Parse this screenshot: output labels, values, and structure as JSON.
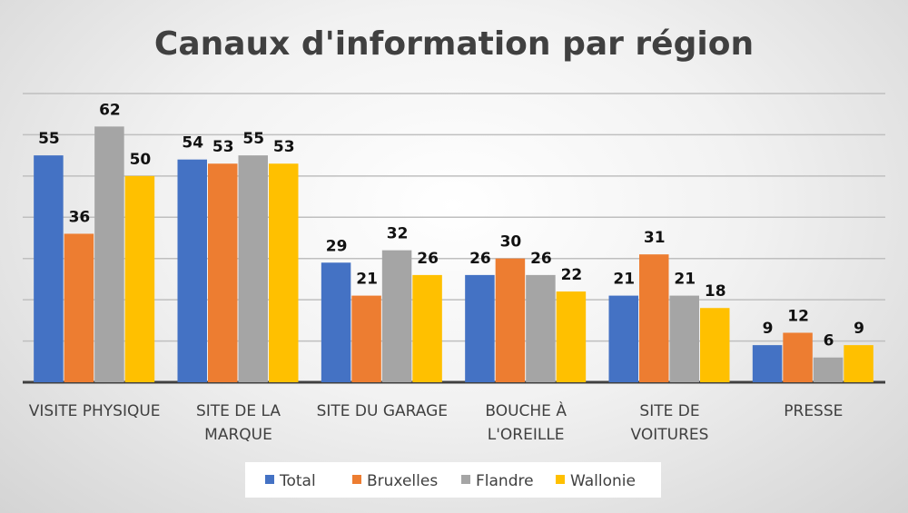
{
  "chart_data": {
    "type": "bar",
    "title": "Canaux d'information par région",
    "categories": [
      [
        "VISITE PHYSIQUE"
      ],
      [
        "SITE DE LA",
        "MARQUE"
      ],
      [
        "SITE DU GARAGE"
      ],
      [
        "BOUCHE À",
        "L'OREILLE"
      ],
      [
        "SITE DE",
        "VOITURES"
      ],
      [
        "PRESSE"
      ]
    ],
    "series": [
      {
        "name": "Total",
        "color": "#4472C4",
        "values": [
          55,
          54,
          29,
          26,
          21,
          9
        ]
      },
      {
        "name": "Bruxelles",
        "color": "#ED7D31",
        "values": [
          36,
          53,
          21,
          30,
          31,
          12
        ]
      },
      {
        "name": "Flandre",
        "color": "#A5A5A5",
        "values": [
          62,
          55,
          32,
          26,
          21,
          6
        ]
      },
      {
        "name": "Wallonie",
        "color": "#FFC000",
        "values": [
          50,
          53,
          26,
          22,
          18,
          9
        ]
      }
    ],
    "ylim": [
      0,
      70
    ],
    "grid": true,
    "y_axis_labels_shown": false,
    "data_labels": true,
    "legend_position": "bottom"
  }
}
